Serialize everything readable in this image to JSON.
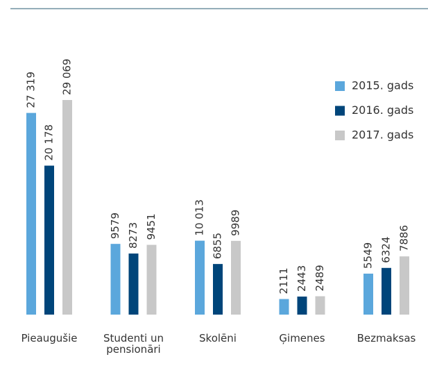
{
  "chart_data": {
    "type": "bar",
    "categories": [
      "Pieaugušie",
      "Studenti un pensionāri",
      "Skolēni",
      "Ģimenes",
      "Bezmaksas"
    ],
    "series": [
      {
        "name": "2015. gads",
        "color": "#5ba7dc",
        "values": [
          27319,
          9579,
          10013,
          2111,
          5549
        ],
        "value_labels": [
          "27 319",
          "9579",
          "10 013",
          "2111",
          "5549"
        ]
      },
      {
        "name": "2016. gads",
        "color": "#00457a",
        "values": [
          20178,
          8273,
          6855,
          2443,
          6324
        ],
        "value_labels": [
          "20 178",
          "8273",
          "6855",
          "2443",
          "6324"
        ]
      },
      {
        "name": "2017. gads",
        "color": "#c8c8c8",
        "values": [
          29069,
          9451,
          9989,
          2489,
          7886
        ],
        "value_labels": [
          "29 069",
          "9451",
          "9989",
          "2489",
          "7886"
        ]
      }
    ],
    "legend": "right"
  }
}
